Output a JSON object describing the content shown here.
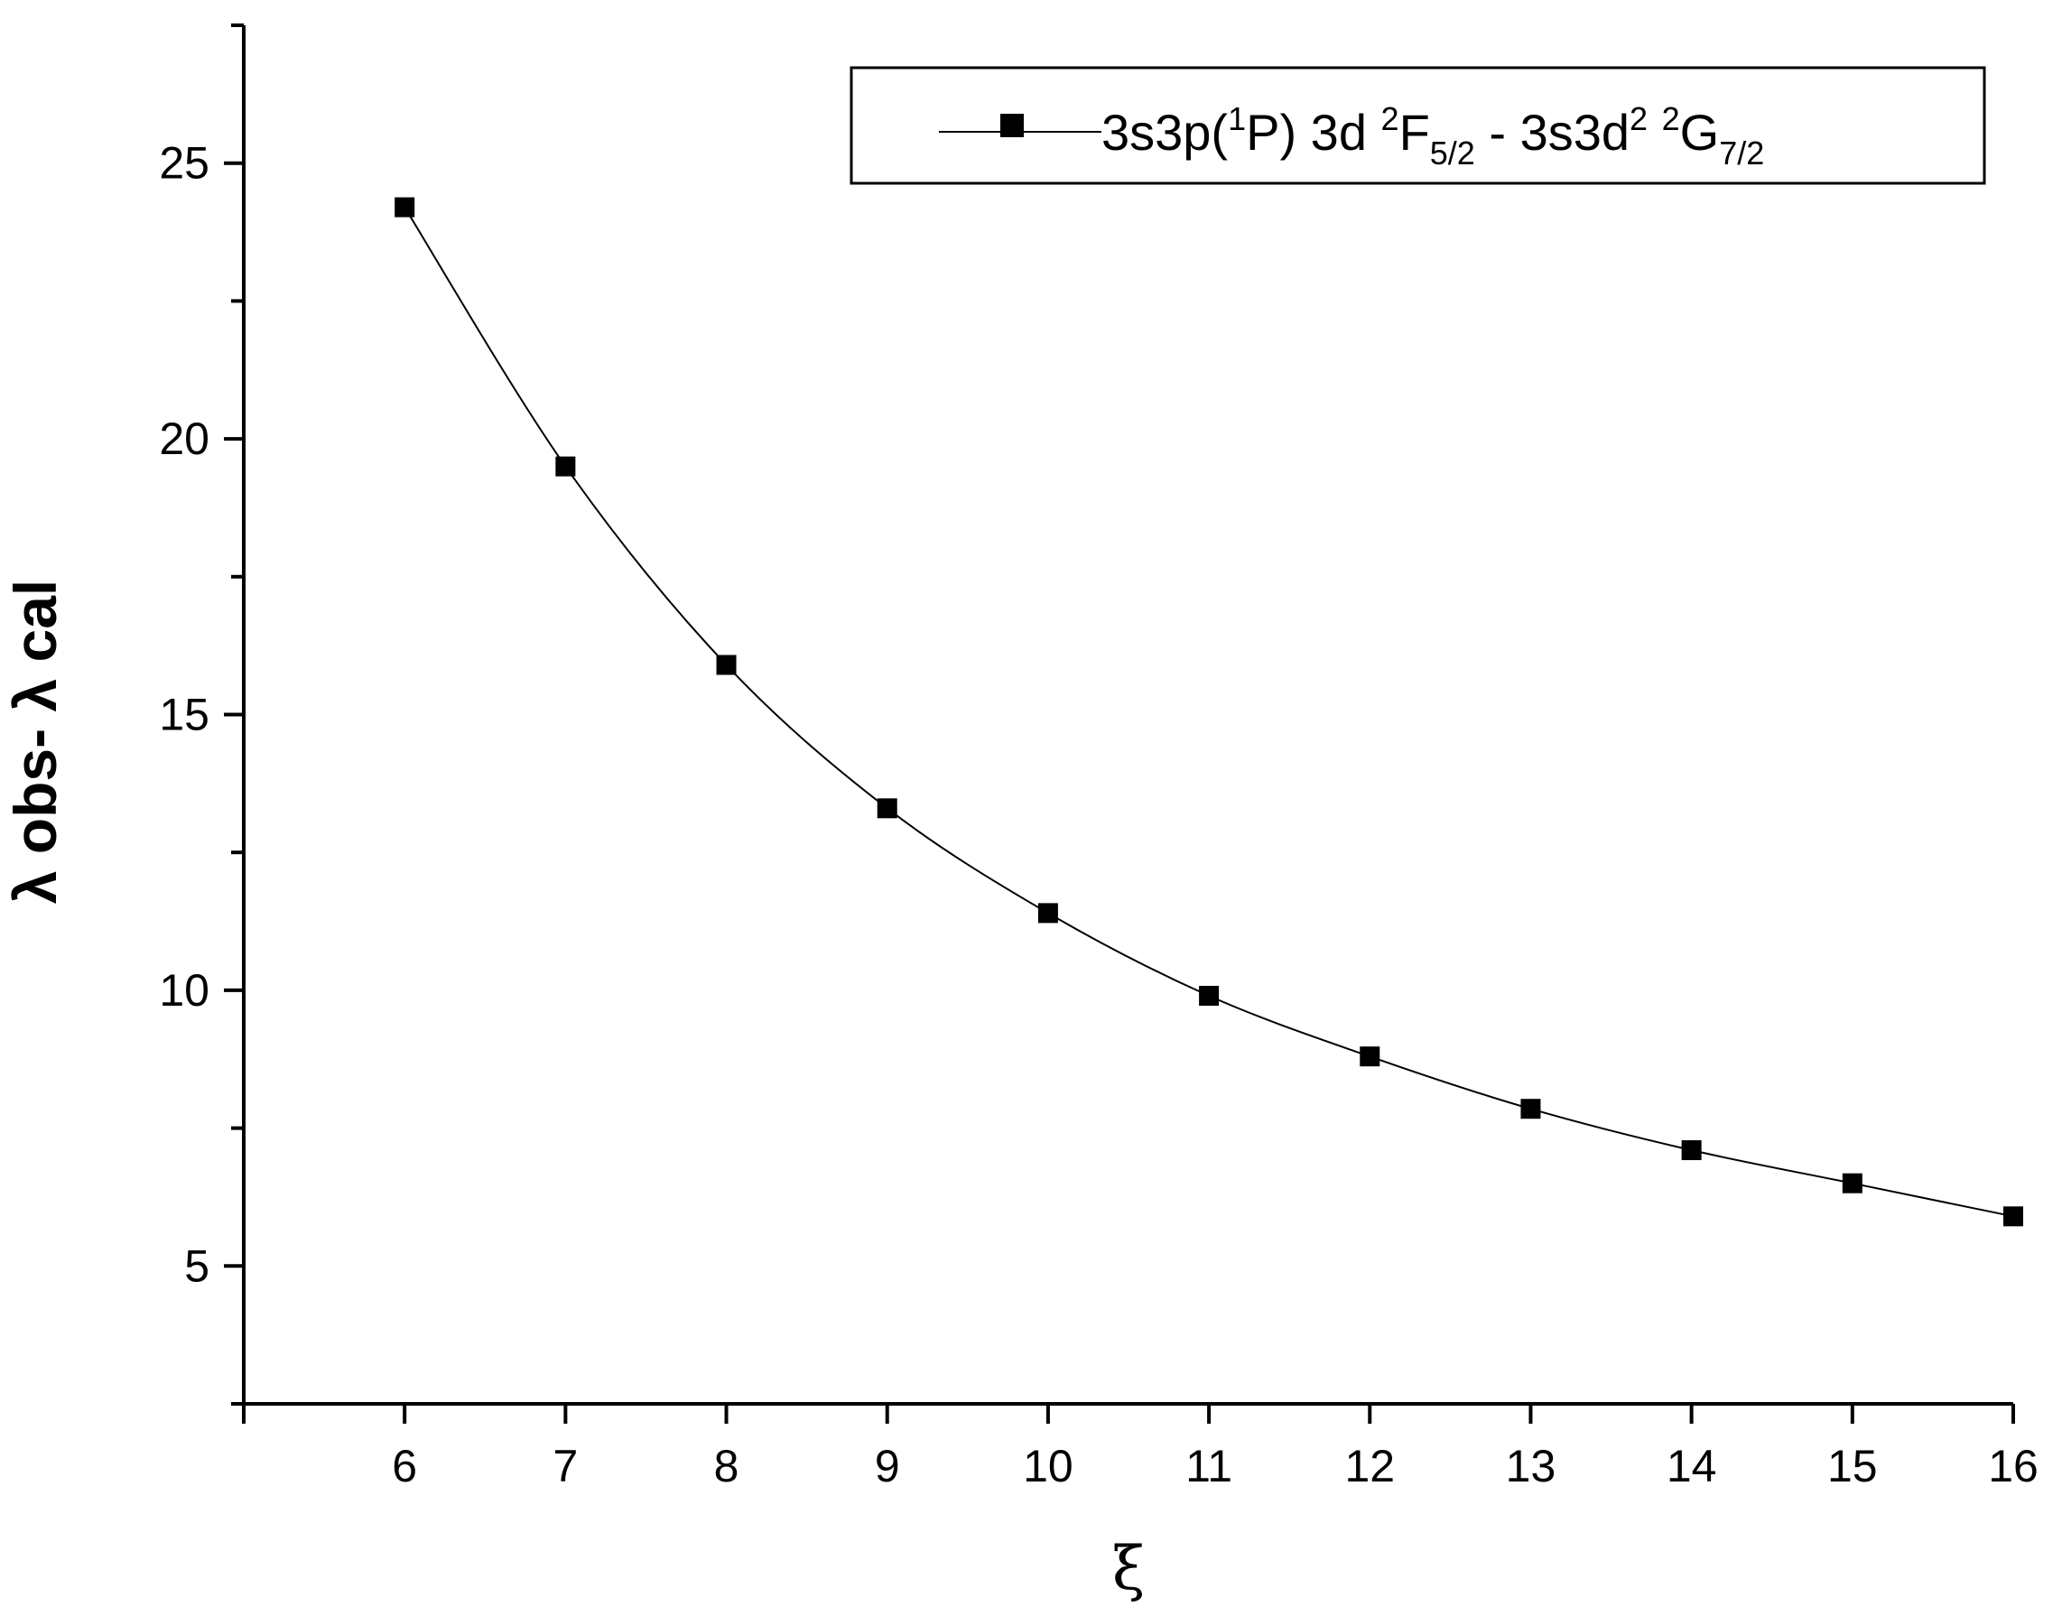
{
  "chart_data": {
    "type": "line",
    "title": "",
    "xlabel": "ξ",
    "ylabel": "λ obs- λ cal",
    "xlim": [
      5,
      16
    ],
    "ylim": [
      2.5,
      27.5
    ],
    "x_ticks": [
      6,
      7,
      8,
      9,
      10,
      11,
      12,
      13,
      14,
      15,
      16
    ],
    "y_ticks": [
      5,
      10,
      15,
      20,
      25
    ],
    "grid": false,
    "legend_position": "top-right",
    "series": [
      {
        "name": "3s3p(1P) 3d 2F5/2 - 3s3d2 2G7/2",
        "marker": "square",
        "color": "#000000",
        "x": [
          6,
          7,
          8,
          9,
          10,
          11,
          12,
          13,
          14,
          15,
          16
        ],
        "y": [
          24.2,
          19.5,
          15.9,
          13.3,
          11.4,
          9.9,
          8.8,
          7.85,
          7.1,
          6.5,
          5.9
        ]
      }
    ],
    "legend": {
      "parts": {
        "a": "3s3p(",
        "b": "1",
        "c": "P) 3d ",
        "d": "2",
        "e": "F",
        "f": "5/2",
        "g": " - 3s3d",
        "h": "2",
        "i": " ",
        "j": "2",
        "k": "G",
        "l": "7/2"
      }
    }
  }
}
